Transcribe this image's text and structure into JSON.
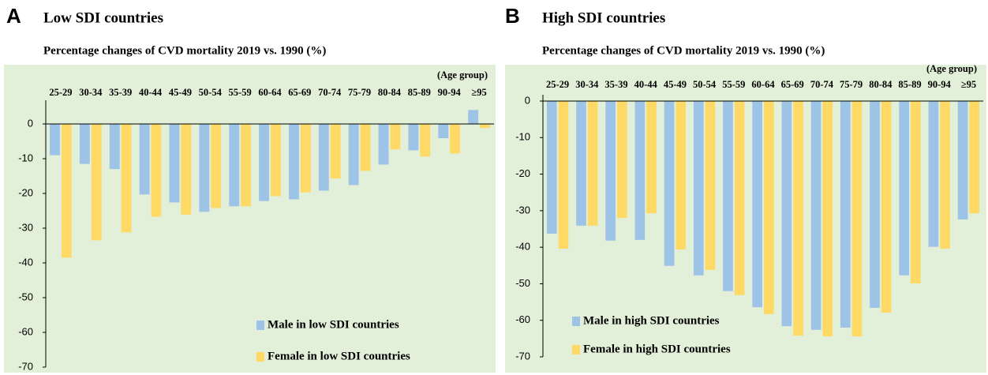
{
  "chart_data": [
    {
      "type": "bar",
      "panel_label": "A",
      "title": "Low SDI countries",
      "subtitle": "Percentage changes of CVD mortality 2019 vs. 1990 (%)",
      "x_label": "(Age group)",
      "categories": [
        "25-29",
        "30-34",
        "35-39",
        "40-44",
        "45-49",
        "50-54",
        "55-59",
        "60-64",
        "65-69",
        "70-74",
        "75-79",
        "80-84",
        "85-89",
        "90-94",
        "≥95"
      ],
      "series": [
        {
          "name": "Male in low SDI countries",
          "color": "#9dc3e6",
          "values": [
            -9,
            -11.5,
            -13,
            -20.3,
            -22.6,
            -25.3,
            -23.7,
            -22.2,
            -21.7,
            -19.2,
            -17.6,
            -11.7,
            -7.6,
            -4.1,
            4
          ]
        },
        {
          "name": "Female in low SDI countries",
          "color": "#ffd966",
          "values": [
            -38.5,
            -33.5,
            -31.2,
            -26.7,
            -26.1,
            -24.2,
            -23.7,
            -20.8,
            -19.7,
            -15.7,
            -13.5,
            -7.3,
            -9.4,
            -8.5,
            -1.2
          ]
        }
      ],
      "ylim": [
        -70,
        5
      ],
      "yticks": [
        0,
        -10,
        -20,
        -30,
        -40,
        -50,
        -60,
        -70
      ],
      "background": "#e2efd9",
      "legend": "bottom"
    },
    {
      "type": "bar",
      "panel_label": "B",
      "title": "High SDI countries",
      "subtitle": "Percentage changes of CVD mortality 2019 vs. 1990 (%)",
      "x_label": "(Age group)",
      "categories": [
        "25-29",
        "30-34",
        "35-39",
        "40-44",
        "45-49",
        "50-54",
        "55-59",
        "60-64",
        "65-69",
        "70-74",
        "75-79",
        "80-84",
        "85-89",
        "90-94",
        "≥95"
      ],
      "series": [
        {
          "name": "Male in high SDI countries",
          "color": "#9dc3e6",
          "values": [
            -36.3,
            -34.1,
            -38.2,
            -38,
            -45.1,
            -47.7,
            -52,
            -56.4,
            -61.6,
            -62.6,
            -62,
            -56.6,
            -47.7,
            -39.9,
            -32.4
          ]
        },
        {
          "name": "Female in high SDI countries",
          "color": "#ffd966",
          "values": [
            -40.4,
            -34.1,
            -32,
            -30.7,
            -40.6,
            -46.2,
            -53.1,
            -58.3,
            -64.2,
            -64.4,
            -64.4,
            -57.9,
            -49.9,
            -40.4,
            -30.7
          ]
        }
      ],
      "ylim": [
        -70,
        0
      ],
      "yticks": [
        0,
        -10,
        -20,
        -30,
        -40,
        -50,
        -60,
        -70
      ],
      "background": "#e2efd9",
      "legend": "bottom"
    }
  ]
}
